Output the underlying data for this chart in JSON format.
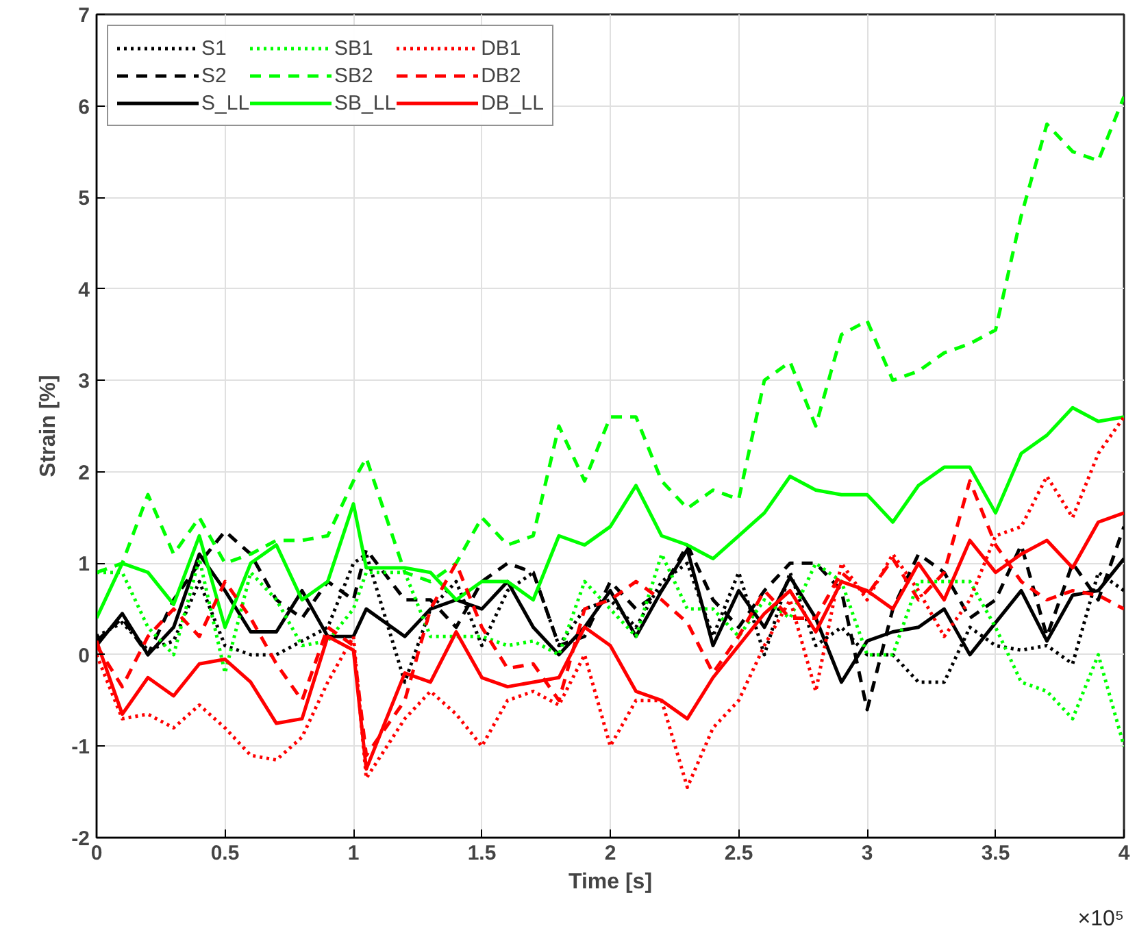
{
  "chart_data": {
    "type": "line",
    "xlabel": "Time [s]",
    "ylabel": "Strain [%]",
    "x": [
      0,
      0.1,
      0.2,
      0.3,
      0.4,
      0.5,
      0.6,
      0.7,
      0.8,
      0.9,
      1.0,
      1.05,
      1.2,
      1.3,
      1.4,
      1.5,
      1.6,
      1.7,
      1.8,
      1.9,
      2.0,
      2.1,
      2.2,
      2.3,
      2.4,
      2.5,
      2.6,
      2.7,
      2.8,
      2.9,
      3.0,
      3.1,
      3.2,
      3.3,
      3.4,
      3.5,
      3.6,
      3.7,
      3.8,
      3.9,
      4.0
    ],
    "xlim": [
      0,
      4
    ],
    "xticks": [
      0,
      0.5,
      1,
      1.5,
      2,
      2.5,
      3,
      3.5,
      4
    ],
    "ylim": [
      -2,
      7
    ],
    "yticks": [
      -2,
      -1,
      0,
      1,
      2,
      3,
      4,
      5,
      6,
      7
    ],
    "grid": true,
    "legend": "top left",
    "marker": "none",
    "annotations": [
      "×10⁵"
    ],
    "series": [
      {
        "name": "S1",
        "color": "#000000",
        "line_style": "dotted",
        "values": [
          0.2,
          0.35,
          0.05,
          0.15,
          0.8,
          0.1,
          0.0,
          0.0,
          0.15,
          0.3,
          1.0,
          1.1,
          -0.3,
          0.5,
          0.8,
          0.1,
          0.7,
          0.9,
          0.1,
          0.5,
          0.6,
          0.3,
          0.8,
          1.0,
          0.2,
          0.9,
          0.0,
          0.9,
          0.1,
          0.3,
          0.0,
          0.0,
          -0.3,
          -0.3,
          0.3,
          0.1,
          0.05,
          0.1,
          -0.1,
          0.9,
          0.7
        ]
      },
      {
        "name": "S2",
        "color": "#000000",
        "line_style": "dashed",
        "values": [
          0.15,
          0.4,
          0.0,
          0.6,
          1.0,
          1.35,
          1.1,
          0.6,
          0.4,
          0.8,
          0.6,
          1.15,
          0.6,
          0.6,
          0.3,
          0.8,
          1.0,
          0.9,
          0.1,
          0.2,
          0.8,
          0.5,
          0.7,
          1.2,
          0.6,
          0.3,
          0.7,
          1.0,
          1.0,
          0.7,
          -0.6,
          0.5,
          1.1,
          0.9,
          0.4,
          0.6,
          1.2,
          0.2,
          1.0,
          0.6,
          1.4
        ]
      },
      {
        "name": "S_LL",
        "color": "#000000",
        "line_style": "solid",
        "values": [
          0.1,
          0.45,
          0.0,
          0.3,
          1.1,
          0.7,
          0.25,
          0.25,
          0.7,
          0.2,
          0.2,
          0.5,
          0.2,
          0.5,
          0.6,
          0.5,
          0.8,
          0.3,
          0.0,
          0.3,
          0.7,
          0.2,
          0.7,
          1.15,
          0.1,
          0.7,
          0.3,
          0.85,
          0.4,
          -0.3,
          0.15,
          0.25,
          0.3,
          0.5,
          0.0,
          0.35,
          0.7,
          0.15,
          0.65,
          0.7,
          1.05
        ]
      },
      {
        "name": "SB1",
        "color": "#00ff00",
        "line_style": "dotted",
        "values": [
          0.9,
          0.9,
          0.3,
          0.0,
          1.05,
          -0.2,
          0.9,
          0.6,
          0.1,
          0.15,
          0.5,
          0.9,
          0.9,
          0.2,
          0.2,
          0.2,
          0.1,
          0.15,
          0.0,
          0.8,
          0.5,
          0.2,
          1.1,
          0.5,
          0.5,
          0.2,
          0.6,
          0.4,
          1.0,
          0.8,
          0.0,
          0.0,
          0.8,
          0.8,
          0.8,
          0.3,
          -0.3,
          -0.4,
          -0.7,
          0.0,
          -1.0
        ]
      },
      {
        "name": "SB2",
        "color": "#00ff00",
        "line_style": "dashed",
        "values": [
          0.9,
          1.0,
          1.75,
          1.1,
          1.5,
          1.0,
          1.1,
          1.25,
          1.25,
          1.3,
          1.9,
          2.15,
          0.9,
          0.8,
          1.0,
          1.5,
          1.2,
          1.3,
          2.5,
          1.9,
          2.6,
          2.6,
          1.9,
          1.6,
          1.8,
          1.7,
          3.0,
          3.2,
          2.5,
          3.5,
          3.65,
          3.0,
          3.1,
          3.3,
          3.4,
          3.55,
          4.8,
          5.8,
          5.5,
          5.4,
          6.1
        ]
      },
      {
        "name": "SB_LL",
        "color": "#00ff00",
        "line_style": "solid",
        "values": [
          0.4,
          1.0,
          0.9,
          0.55,
          1.3,
          0.3,
          1.0,
          1.2,
          0.6,
          0.8,
          1.65,
          0.95,
          0.95,
          0.9,
          0.6,
          0.8,
          0.8,
          0.6,
          1.3,
          1.2,
          1.4,
          1.85,
          1.3,
          1.2,
          1.05,
          1.3,
          1.55,
          1.95,
          1.8,
          1.75,
          1.75,
          1.45,
          1.85,
          2.05,
          2.05,
          1.55,
          2.2,
          2.4,
          2.7,
          2.55,
          2.6
        ]
      },
      {
        "name": "DB1",
        "color": "#ff0000",
        "line_style": "dotted",
        "values": [
          0.0,
          -0.7,
          -0.65,
          -0.8,
          -0.55,
          -0.8,
          -1.1,
          -1.15,
          -0.9,
          -0.3,
          0.2,
          -1.35,
          -0.7,
          -0.4,
          -0.65,
          -1.0,
          -0.5,
          -0.4,
          -0.55,
          0.0,
          -1.0,
          -0.5,
          -0.5,
          -1.45,
          -0.8,
          -0.5,
          0.1,
          0.6,
          -0.4,
          1.0,
          0.6,
          1.1,
          0.7,
          0.2,
          0.6,
          1.3,
          1.4,
          1.95,
          1.5,
          2.2,
          2.6
        ]
      },
      {
        "name": "DB2",
        "color": "#ff0000",
        "line_style": "dashed",
        "values": [
          0.1,
          -0.35,
          0.2,
          0.5,
          0.2,
          0.8,
          0.4,
          -0.1,
          -0.5,
          0.3,
          0.1,
          -1.1,
          -0.5,
          0.5,
          1.0,
          0.3,
          -0.15,
          -0.1,
          -0.5,
          0.5,
          0.6,
          0.8,
          0.6,
          0.35,
          -0.2,
          0.2,
          0.7,
          0.4,
          0.4,
          0.9,
          0.65,
          1.05,
          0.6,
          0.9,
          1.9,
          1.2,
          0.8,
          0.6,
          0.7,
          0.65,
          0.5
        ]
      },
      {
        "name": "DB_LL",
        "color": "#ff0000",
        "line_style": "solid",
        "values": [
          0.15,
          -0.65,
          -0.25,
          -0.45,
          -0.1,
          -0.05,
          -0.3,
          -0.75,
          -0.7,
          0.2,
          0.05,
          -1.25,
          -0.2,
          -0.3,
          0.25,
          -0.25,
          -0.35,
          -0.3,
          -0.25,
          0.3,
          0.1,
          -0.4,
          -0.5,
          -0.7,
          -0.25,
          0.1,
          0.45,
          0.7,
          0.25,
          0.8,
          0.7,
          0.5,
          1.0,
          0.6,
          1.25,
          0.9,
          1.1,
          1.25,
          0.95,
          1.45,
          1.55
        ]
      }
    ]
  }
}
